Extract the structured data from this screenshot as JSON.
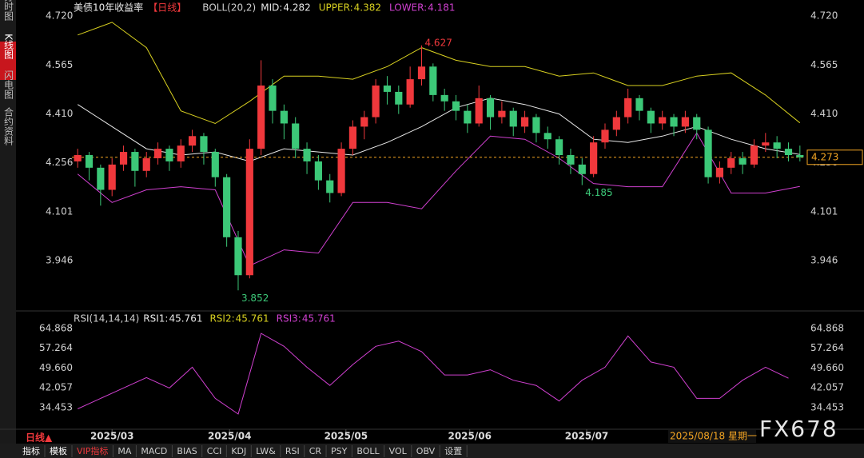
{
  "sidebar_tabs": [
    "分时图",
    "K线图",
    "闪电图",
    "合约资料"
  ],
  "chart_data": {
    "type": "candlestick",
    "title": "美债10年收益率",
    "period": "【日线】",
    "boll": {
      "label": "BOLL(20,2)",
      "legend": [
        {
          "label": "MID:",
          "value": 4.282,
          "color": "#e8e8e8"
        },
        {
          "label": "UPPER:",
          "value": 4.382,
          "color": "#d8d020"
        },
        {
          "label": "LOWER:",
          "value": 4.181,
          "color": "#d040d0"
        }
      ],
      "x": [
        0,
        3,
        6,
        9,
        12,
        15,
        18,
        21,
        24,
        27,
        30,
        33,
        36,
        39,
        42,
        45,
        48,
        51,
        54,
        57,
        60,
        63
      ],
      "series": [
        {
          "name": "UPPER",
          "color": "#d8d020",
          "values": [
            4.66,
            4.7,
            4.62,
            4.42,
            4.38,
            4.45,
            4.53,
            4.53,
            4.52,
            4.56,
            4.62,
            4.58,
            4.56,
            4.56,
            4.53,
            4.54,
            4.5,
            4.5,
            4.53,
            4.54,
            4.47,
            4.382
          ]
        },
        {
          "name": "MID",
          "color": "#e8e8e8",
          "values": [
            4.44,
            4.37,
            4.3,
            4.28,
            4.29,
            4.26,
            4.3,
            4.29,
            4.28,
            4.32,
            4.37,
            4.43,
            4.46,
            4.44,
            4.41,
            4.33,
            4.32,
            4.34,
            4.37,
            4.33,
            4.3,
            4.282
          ]
        },
        {
          "name": "LOWER",
          "color": "#d040d0",
          "values": [
            4.22,
            4.13,
            4.17,
            4.18,
            4.17,
            3.93,
            3.98,
            3.97,
            4.13,
            4.13,
            4.11,
            4.23,
            4.34,
            4.33,
            4.27,
            4.19,
            4.18,
            4.18,
            4.35,
            4.16,
            4.16,
            4.181
          ]
        }
      ]
    },
    "candles": {
      "up_color": "#f0383c",
      "down_color": "#3cc878",
      "open": [
        4.26,
        4.28,
        4.24,
        4.17,
        4.25,
        4.29,
        4.23,
        4.27,
        4.3,
        4.26,
        4.31,
        4.34,
        4.29,
        4.21,
        4.02,
        3.9,
        4.3,
        4.5,
        4.42,
        4.38,
        4.3,
        4.26,
        4.2,
        4.16,
        4.3,
        4.37,
        4.4,
        4.5,
        4.48,
        4.44,
        4.52,
        4.56,
        4.47,
        4.45,
        4.42,
        4.38,
        4.46,
        4.4,
        4.42,
        4.37,
        4.4,
        4.35,
        4.33,
        4.28,
        4.25,
        4.22,
        4.32,
        4.36,
        4.4,
        4.46,
        4.42,
        4.38,
        4.4,
        4.37,
        4.4,
        4.36,
        4.21,
        4.24,
        4.27,
        4.25,
        4.31,
        4.32,
        4.3,
        4.28
      ],
      "high": [
        4.3,
        4.29,
        4.25,
        4.27,
        4.31,
        4.3,
        4.29,
        4.32,
        4.31,
        4.33,
        4.36,
        4.35,
        4.3,
        4.22,
        4.04,
        4.33,
        4.58,
        4.52,
        4.44,
        4.4,
        4.32,
        4.28,
        4.22,
        4.32,
        4.39,
        4.42,
        4.52,
        4.53,
        4.5,
        4.56,
        4.627,
        4.57,
        4.49,
        4.47,
        4.44,
        4.5,
        4.47,
        4.45,
        4.43,
        4.42,
        4.41,
        4.37,
        4.34,
        4.3,
        4.27,
        4.34,
        4.38,
        4.42,
        4.49,
        4.47,
        4.43,
        4.42,
        4.41,
        4.42,
        4.41,
        4.37,
        4.26,
        4.29,
        4.29,
        4.33,
        4.35,
        4.34,
        4.32,
        4.31
      ],
      "low": [
        4.24,
        4.2,
        4.12,
        4.15,
        4.23,
        4.18,
        4.21,
        4.25,
        4.23,
        4.24,
        4.29,
        4.25,
        4.18,
        3.99,
        3.852,
        3.89,
        4.28,
        4.38,
        4.33,
        4.27,
        4.22,
        4.17,
        4.13,
        4.15,
        4.28,
        4.33,
        4.38,
        4.44,
        4.41,
        4.43,
        4.5,
        4.45,
        4.42,
        4.39,
        4.35,
        4.37,
        4.36,
        4.38,
        4.34,
        4.35,
        4.32,
        4.3,
        4.25,
        4.22,
        4.185,
        4.21,
        4.3,
        4.34,
        4.38,
        4.39,
        4.35,
        4.36,
        4.34,
        4.35,
        4.33,
        4.19,
        4.19,
        4.22,
        4.22,
        4.24,
        4.29,
        4.27,
        4.26,
        4.26
      ],
      "close": [
        4.28,
        4.24,
        4.17,
        4.25,
        4.29,
        4.23,
        4.27,
        4.3,
        4.26,
        4.31,
        4.34,
        4.29,
        4.21,
        4.02,
        3.9,
        4.3,
        4.5,
        4.42,
        4.38,
        4.3,
        4.26,
        4.2,
        4.16,
        4.3,
        4.37,
        4.4,
        4.5,
        4.48,
        4.44,
        4.52,
        4.56,
        4.47,
        4.45,
        4.42,
        4.38,
        4.46,
        4.4,
        4.42,
        4.37,
        4.4,
        4.35,
        4.33,
        4.28,
        4.25,
        4.22,
        4.32,
        4.36,
        4.4,
        4.46,
        4.42,
        4.38,
        4.4,
        4.37,
        4.4,
        4.36,
        4.21,
        4.24,
        4.27,
        4.25,
        4.31,
        4.32,
        4.3,
        4.28,
        4.273
      ]
    },
    "marked_highs": [
      30
    ],
    "marked_lows": [
      14,
      44
    ],
    "last_price": 4.273,
    "last_price_color": "#f5a623",
    "ylim": [
      3.797,
      4.758
    ],
    "yticks": [
      3.946,
      4.101,
      4.256,
      {
        "value": 4.41,
        "label": "4.410"
      },
      4.565,
      {
        "value": 4.72,
        "label": "4.720"
      }
    ],
    "xticks": [
      {
        "value": 3.0,
        "label": "2025/03"
      },
      {
        "value": 13.25,
        "label": "2025/04"
      },
      {
        "value": 23.4,
        "label": "2025/05"
      },
      {
        "value": 34.2,
        "label": "2025/06"
      },
      {
        "value": 44.4,
        "label": "2025/07"
      }
    ],
    "rsi": {
      "label": "RSI(14,14,14)",
      "legend": [
        {
          "label": "RSI1:",
          "value": 45.761,
          "color": "#e8e8e8"
        },
        {
          "label": "RSI2:",
          "value": 45.761,
          "color": "#d8d020"
        },
        {
          "label": "RSI3:",
          "value": 45.761,
          "color": "#d040d0"
        }
      ],
      "x": [
        0,
        2,
        4,
        6,
        8,
        10,
        12,
        14,
        16,
        18,
        20,
        22,
        24,
        26,
        28,
        30,
        32,
        34,
        36,
        38,
        40,
        42,
        44,
        46,
        48,
        50,
        52,
        54,
        56,
        58,
        60,
        62
      ],
      "color": "#d040d0",
      "values": [
        34,
        38,
        42,
        46,
        42,
        50,
        38,
        32,
        63,
        58,
        50,
        43,
        51,
        58,
        60,
        56,
        47,
        47,
        49,
        45,
        43,
        37,
        45,
        50,
        62,
        52,
        50,
        38,
        38,
        45,
        50,
        45.761
      ],
      "ylim": [
        26.77,
        70.7
      ],
      "yticks": [
        34.453,
        42.057,
        {
          "value": 49.66,
          "label": "49.660"
        },
        57.264,
        64.868
      ]
    },
    "cursor_date": "2025/08/18 星期一",
    "period_button": "日线▲"
  },
  "toolbar": [
    "指标",
    "模板",
    "VIP指标",
    "MA",
    "MACD",
    "BIAS",
    "CCI",
    "KDJ",
    "LW&",
    "RSI",
    "CR",
    "PSY",
    "BOLL",
    "VOL",
    "OBV",
    "设置"
  ],
  "watermark": "FX678"
}
